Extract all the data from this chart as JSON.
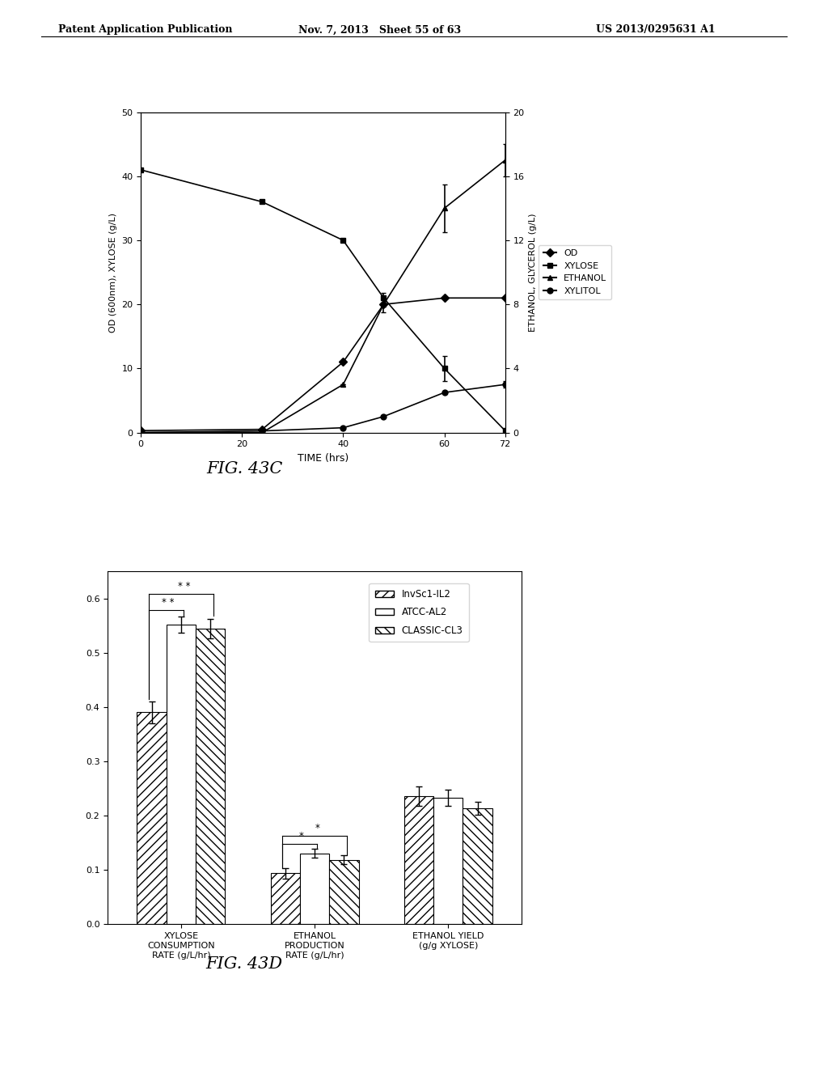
{
  "header_left": "Patent Application Publication",
  "header_center": "Nov. 7, 2013   Sheet 55 of 63",
  "header_right": "US 2013/0295631 A1",
  "fig43c": {
    "title": "FIG. 43C",
    "time": [
      0,
      24,
      40,
      48,
      60,
      72
    ],
    "OD": [
      0.3,
      0.5,
      11,
      20,
      21,
      21
    ],
    "XYLOSE": [
      41,
      36,
      30,
      21,
      10,
      0.3
    ],
    "ETHANOL": [
      0,
      0,
      3,
      8,
      14,
      17
    ],
    "XYLITOL": [
      0,
      0.1,
      0.3,
      1.0,
      2.5,
      3.0
    ],
    "OD_err": [
      0,
      0,
      0,
      0,
      0,
      0
    ],
    "XYLOSE_err": [
      0,
      0,
      0,
      0.8,
      2.0,
      0
    ],
    "ETHANOL_err": [
      0,
      0,
      0,
      0.5,
      1.5,
      1.0
    ],
    "XYLITOL_err": [
      0,
      0,
      0,
      0,
      0,
      0.2
    ],
    "left_ylim": [
      0,
      50
    ],
    "left_yticks": [
      0,
      10,
      20,
      30,
      40,
      50
    ],
    "right_ylim": [
      0,
      20
    ],
    "right_yticks": [
      0,
      4,
      8,
      12,
      16,
      20
    ],
    "xlim": [
      0,
      72
    ],
    "xticks": [
      0,
      20,
      40,
      60,
      72
    ],
    "xlabel": "TIME (hrs)",
    "ylabel_left": "OD (600nm), XYLOSE (g/L)",
    "ylabel_right": "ETHANOL, GLYCEROL (g/L)"
  },
  "fig43d": {
    "title": "FIG. 43D",
    "groups": [
      "XYLOSE\nCONSUMPTION\nRATE (g/L/hr)",
      "ETHANOL\nPRODUCTION\nRATE (g/L/hr)",
      "ETHANOL YIELD\n(g/g XYLOSE)"
    ],
    "InvSc1_IL2": [
      0.39,
      0.093,
      0.235
    ],
    "ATCC_AL2": [
      0.552,
      0.13,
      0.233
    ],
    "CLASSIC_CL3": [
      0.545,
      0.118,
      0.213
    ],
    "InvSc1_IL2_err": [
      0.02,
      0.01,
      0.018
    ],
    "ATCC_AL2_err": [
      0.015,
      0.008,
      0.015
    ],
    "CLASSIC_CL3_err": [
      0.018,
      0.008,
      0.012
    ],
    "ylim": [
      0.0,
      0.65
    ],
    "yticks": [
      0.0,
      0.1,
      0.2,
      0.3,
      0.4,
      0.5,
      0.6
    ],
    "bar_width": 0.22,
    "legend_labels": [
      "InvSc1-IL2",
      "ATCC-AL2",
      "CLASSIC-CL3"
    ]
  }
}
